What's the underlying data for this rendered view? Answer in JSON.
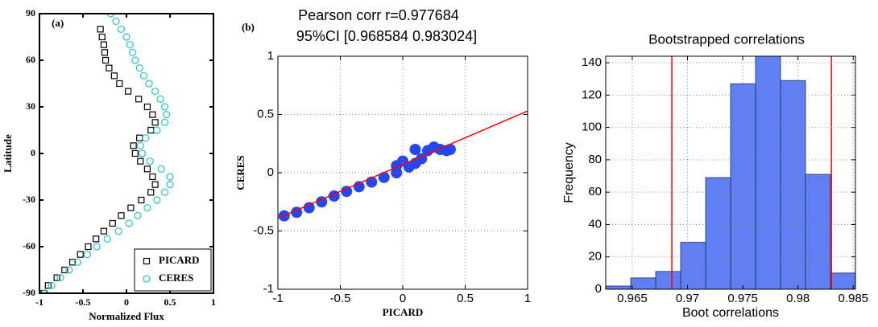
{
  "chart_data": [
    {
      "type": "scatter",
      "label": "(a)",
      "xlabel": "Normalized Flux",
      "ylabel": "Latitude",
      "xlim": [
        -1,
        1
      ],
      "ylim": [
        -90,
        90
      ],
      "xticks": [
        -1,
        -0.5,
        0,
        0.5,
        1
      ],
      "yticks": [
        -90,
        -60,
        -30,
        0,
        30,
        60,
        90
      ],
      "grid": false,
      "legend": "lower right",
      "series": [
        {
          "name": "PICARD",
          "color": "#000000",
          "marker": "square",
          "x": [
            -0.3,
            -0.28,
            -0.26,
            -0.25,
            -0.24,
            -0.2,
            -0.14,
            -0.08,
            0.02,
            0.14,
            0.24,
            0.3,
            0.33,
            0.28,
            0.15,
            0.08,
            0.1,
            0.16,
            0.24,
            0.3,
            0.33,
            0.28,
            0.17,
            0.05,
            -0.06,
            -0.16,
            -0.26,
            -0.35,
            -0.44,
            -0.53,
            -0.62,
            -0.71,
            -0.8,
            -0.9,
            -0.95
          ],
          "y": [
            80,
            75,
            70,
            65,
            60,
            55,
            50,
            45,
            40,
            35,
            30,
            25,
            20,
            15,
            10,
            5,
            0,
            -5,
            -10,
            -15,
            -20,
            -25,
            -30,
            -35,
            -40,
            -45,
            -50,
            -55,
            -60,
            -65,
            -70,
            -75,
            -80,
            -85,
            -90
          ]
        },
        {
          "name": "CERES",
          "color": "#22c4c4",
          "marker": "circle",
          "x": [
            -0.18,
            -0.12,
            -0.06,
            0.0,
            0.04,
            0.07,
            0.1,
            0.15,
            0.2,
            0.26,
            0.33,
            0.39,
            0.44,
            0.46,
            0.44,
            0.35,
            0.22,
            0.16,
            0.18,
            0.27,
            0.4,
            0.5,
            0.5,
            0.44,
            0.35,
            0.24,
            0.13,
            0.03,
            -0.09,
            -0.22,
            -0.34,
            -0.45,
            -0.56,
            -0.66,
            -0.76,
            -0.86,
            -0.94
          ],
          "y": [
            90,
            85,
            80,
            75,
            70,
            65,
            60,
            55,
            50,
            45,
            40,
            35,
            30,
            25,
            20,
            15,
            10,
            5,
            0,
            -5,
            -10,
            -15,
            -20,
            -25,
            -30,
            -35,
            -40,
            -45,
            -50,
            -55,
            -60,
            -65,
            -70,
            -75,
            -80,
            -85,
            -90
          ]
        }
      ]
    },
    {
      "type": "scatter",
      "label": "(b)",
      "title": "Pearson corr r=0.977684",
      "subtitle": "95%CI [0.968584 0.983024]",
      "xlabel": "PICARD",
      "ylabel": "CERES",
      "xlim": [
        -1,
        1
      ],
      "ylim": [
        -1,
        1
      ],
      "xticks": [
        -1,
        -0.5,
        0,
        0.5,
        1
      ],
      "yticks": [
        -1,
        -0.5,
        0,
        0.5,
        1
      ],
      "grid": true,
      "series": [
        {
          "color": "#2447f0",
          "marker": "dot",
          "x": [
            -0.95,
            -0.85,
            -0.75,
            -0.65,
            -0.55,
            -0.45,
            -0.35,
            -0.25,
            -0.15,
            -0.05,
            0.05,
            0.1,
            0.15,
            0.2,
            0.25,
            0.3,
            0.35,
            0.38,
            0.0,
            0.1,
            -0.05
          ],
          "y": [
            -0.37,
            -0.34,
            -0.3,
            -0.25,
            -0.2,
            -0.16,
            -0.12,
            -0.08,
            -0.04,
            0.0,
            0.05,
            0.08,
            0.12,
            0.19,
            0.22,
            0.2,
            0.19,
            0.2,
            0.1,
            0.2,
            0.06
          ]
        },
        {
          "color": "#ff0000",
          "marker": "line",
          "x": [
            -1,
            1
          ],
          "y": [
            -0.39,
            0.53
          ]
        }
      ]
    },
    {
      "type": "histogram",
      "title": "Bootstrapped correlations",
      "xlabel": "Boot correlations",
      "ylabel": "Frequency",
      "xlim": [
        0.9626,
        0.9852
      ],
      "ylim": [
        0,
        144
      ],
      "xticks": [
        0.965,
        0.97,
        0.975,
        0.98,
        0.985
      ],
      "yticks": [
        0,
        20,
        40,
        60,
        80,
        100,
        120,
        140
      ],
      "grid": true,
      "bins": [
        0.9626,
        0.96486,
        0.96712,
        0.96938,
        0.97164,
        0.9739,
        0.97616,
        0.97842,
        0.98068,
        0.98294,
        0.9852
      ],
      "counts": [
        2,
        7,
        11,
        29,
        69,
        127,
        144,
        129,
        71,
        10
      ],
      "color": "#5f7ff2",
      "vlines": [
        0.968584,
        0.983024
      ],
      "vline_color": "#ff0000"
    }
  ]
}
